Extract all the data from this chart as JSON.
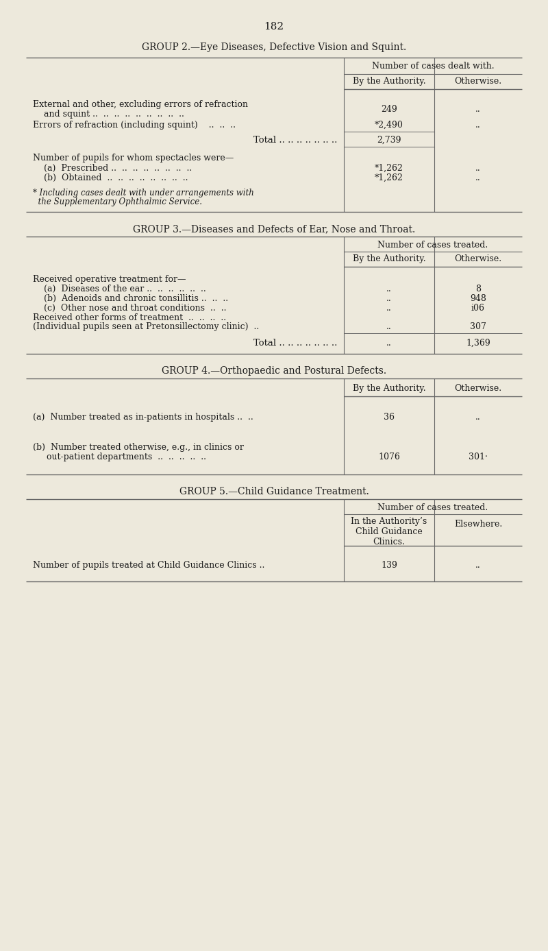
{
  "page_number": "182",
  "bg_color": "#ede9dc",
  "text_color": "#1a1a1a",
  "line_color": "#666666",
  "group2_title": "GROUP 2.—Eye Diseases, Defective Vision and Squint.",
  "group3_title": "GROUP 3.—Diseases and Defects of Ear, Nose and Throat.",
  "group4_title": "GROUP 4.—Orthopaedic and Postural Defects.",
  "group5_title": "GROUP 5.—Child Guidance Treatment.",
  "col_header_dealt": "Number of cases dealt with.",
  "col_header_treated": "Number of cases treated.",
  "col_authority": "By the Authority.",
  "col_otherwise": "Otherwise.",
  "col_auth_clinics": "In the Authority’s\nChild Guidance\nClinics.",
  "col_elsewhere": "Elsewhere.",
  "g2_row1a": "External and other, excluding errors of refraction",
  "g2_row1b": "    and squint ..  ..  ..  ..  ..  ..  ..  ..  ..",
  "g2_row2": "Errors of refraction (including squint)    ..  ..  ..",
  "g2_val1a": "249",
  "g2_val2a": "*2,490",
  "g2_total_label": "Total .. .. .. .. .. .. ..",
  "g2_total_val": "2,739",
  "g2_spec_hdr": "Number of pupils for whom spectacles were—",
  "g2_spec_a": "    (a)  Prescribed ..  ..  ..  ..  ..  ..  ..  ..",
  "g2_spec_b": "    (b)  Obtained  ..  ..  ..  ..  ..  ..  ..  ..",
  "g2_spec_val": "*1,262",
  "g2_footnote1": "* Including cases dealt with under arrangements with",
  "g2_footnote2": "  the Supplementary Ophthalmic Service.",
  "g3_row_hdr": "Received operative treatment for—",
  "g3_row_a_lbl": "    (a)  Diseases of the ear ..  ..  ..  ..  ..  ..",
  "g3_row_b_lbl": "    (b)  Adenoids and chronic tonsillitis ..  ..  ..",
  "g3_row_c_lbl": "    (c)  Other nose and throat conditions  ..  ..",
  "g3_row_d1": "Received other forms of treatment  ..  ..  ..  ..",
  "g3_row_d2": "(Individual pupils seen at Pretonsillectomy clinic)  ..",
  "g3_row_a_val": "8",
  "g3_row_b_val": "948",
  "g3_row_c_val": "i06",
  "g3_row_d_val": "307",
  "g3_total_val": "1,369",
  "g4_row_a_lbl": "(a)  Number treated as in-patients in hospitals ..  ..",
  "g4_row_b_lbl1": "(b)  Number treated otherwise, e.g., in clinics or",
  "g4_row_b_lbl2": "     out-patient departments  ..  ..  ..  ..  ..",
  "g4_row_a_val": "36",
  "g4_row_b_val1": "1076",
  "g4_row_b_val2": "301·",
  "g5_row_lbl": "Number of pupils treated at Child Guidance Clinics ..",
  "g5_row_val": "139"
}
